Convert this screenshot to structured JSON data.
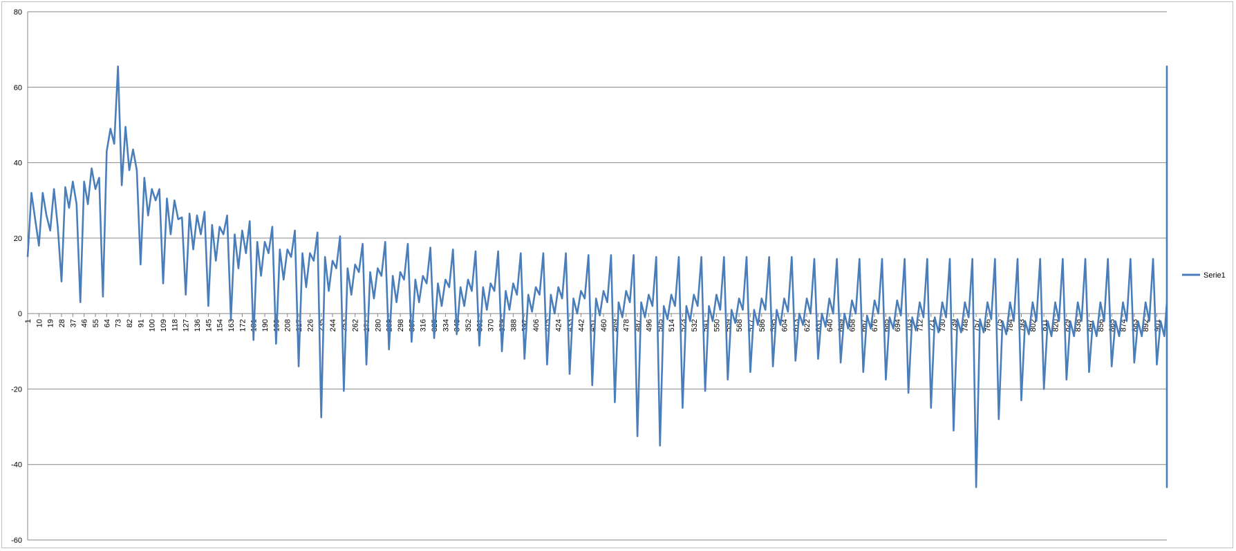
{
  "chart_data": {
    "type": "line",
    "title": "",
    "xlabel": "",
    "ylabel": "",
    "x_range": [
      1,
      909
    ],
    "x_tick_step": 9,
    "ylim": [
      -60,
      80
    ],
    "y_ticks": [
      -60,
      -40,
      -20,
      0,
      20,
      40,
      60,
      80
    ],
    "grid": "horizontal",
    "legend": "right",
    "line_color": "#4a7ebb",
    "series": [
      {
        "name": "Serie1",
        "samples_every": 3,
        "values": [
          15,
          32,
          25,
          18,
          32,
          26,
          22,
          33,
          23,
          8.5,
          33.5,
          28,
          35,
          29,
          3,
          35,
          29,
          38.5,
          33,
          36,
          4.5,
          43,
          49,
          45,
          65.5,
          34,
          49.5,
          38,
          43.5,
          38,
          13,
          36,
          26,
          33,
          30,
          33,
          8,
          30.5,
          21,
          30,
          25,
          25.5,
          5,
          26.5,
          17,
          26,
          21,
          27,
          2,
          23.5,
          14,
          23,
          21,
          26,
          -1.5,
          21,
          12,
          22,
          16,
          24.5,
          -7,
          19,
          10,
          19,
          16,
          23,
          -8,
          17,
          9,
          17,
          15,
          22,
          -14,
          16,
          7,
          16,
          14,
          21.5,
          -27.5,
          15,
          6,
          14,
          12,
          20.5,
          -20.5,
          12,
          5,
          13,
          11,
          18.5,
          -13.5,
          11,
          4,
          12,
          10,
          19,
          -9.5,
          10,
          3,
          11,
          9,
          18.5,
          -7.5,
          9,
          3,
          10,
          8,
          17.5,
          -6.5,
          8,
          2,
          9,
          7,
          17,
          -5.5,
          7,
          2,
          9,
          6,
          16.5,
          -8.5,
          7,
          1,
          8,
          6,
          16.5,
          -10,
          6,
          1,
          8,
          5,
          16,
          -12,
          5,
          0.5,
          7,
          5,
          16,
          -13.5,
          5,
          0,
          7,
          4,
          16,
          -16,
          4,
          0,
          6,
          4,
          15.5,
          -19,
          4,
          -0.5,
          6,
          3,
          15.5,
          -23.5,
          3,
          -1,
          6,
          3,
          15.5,
          -32.5,
          3,
          -1,
          5,
          2,
          15,
          -35,
          2,
          -1.5,
          5,
          2,
          15,
          -25,
          2,
          -2,
          5,
          2,
          15,
          -20.5,
          2,
          -2,
          5,
          1,
          15,
          -17.5,
          1,
          -2.5,
          4,
          1,
          15,
          -15.5,
          1,
          -3,
          4,
          1,
          15,
          -14,
          1,
          -3,
          4,
          0.5,
          15,
          -12.5,
          0,
          -3,
          4,
          0,
          14.5,
          -12,
          0,
          -3.5,
          4,
          0,
          14.5,
          -13,
          0,
          -4,
          3.5,
          0,
          14.5,
          -15.5,
          -0.5,
          -4,
          3.5,
          0,
          14.5,
          -17.5,
          -1,
          -4,
          3.5,
          -0.5,
          14.5,
          -21,
          -1,
          -4.5,
          3,
          -1,
          14.5,
          -25,
          -1,
          -5,
          3,
          -1,
          14.5,
          -31,
          -1.5,
          -5,
          3,
          -1,
          14.5,
          -46,
          -1.5,
          -5,
          3,
          -1.5,
          14.5,
          -28,
          -2,
          -5.5,
          3,
          -2,
          14.5,
          -23,
          -2,
          -5.5,
          3,
          -2,
          14.5,
          -20,
          -2,
          -6,
          3,
          -2,
          14.5,
          -17.5,
          -2,
          -6,
          3,
          -2,
          14.5,
          -15.5,
          -2,
          -6,
          3,
          -2,
          14.5,
          -14,
          -2,
          -6,
          3,
          -2,
          14.5,
          -13,
          -2,
          -6,
          3,
          -2,
          14.5,
          -13.5,
          -2,
          -6,
          3,
          -2,
          14.5,
          -15,
          -2,
          -6,
          3,
          -2,
          14.5,
          -17,
          -2,
          -6,
          3,
          -2,
          14.5,
          -19.5,
          -2,
          -5.5,
          3,
          -2,
          14.5,
          -23,
          -2,
          -5.5,
          3,
          -2,
          14.5,
          -28,
          -1.5,
          -5,
          3,
          -1.5,
          14.5,
          -46,
          -1.5,
          -5,
          3,
          -1,
          14.5,
          -31,
          -1,
          -5,
          3,
          -1,
          14.5,
          -25,
          -1,
          -4.5,
          3,
          -1,
          14.5,
          -21,
          -1,
          -4,
          3.5,
          -0.5,
          14.5,
          -17.5,
          0,
          -4,
          3.5,
          0,
          14.5,
          -15.5,
          0,
          -4,
          3.5,
          0,
          14.5,
          -13,
          0,
          -3.5,
          4,
          0,
          14.5,
          -12,
          0,
          -3,
          4,
          0,
          15,
          -12.5,
          0.5,
          -3,
          4,
          1,
          15,
          -14,
          1,
          -3,
          4,
          1,
          15,
          -15.5,
          1,
          -2.5,
          4,
          1,
          15,
          -17.5,
          1,
          -2,
          5,
          2,
          15,
          -20.5,
          2,
          -2,
          5,
          2,
          15,
          -25,
          2,
          -1.5,
          5,
          2,
          15,
          -35,
          2,
          -1,
          5,
          3,
          15.5,
          -32.5,
          3,
          -1,
          6,
          3,
          15.5,
          -23.5,
          3,
          -0.5,
          6,
          4,
          15.5,
          -19,
          4,
          0,
          6,
          4,
          16,
          -16,
          4,
          0,
          7,
          5,
          16,
          -13.5,
          5,
          0.5,
          7,
          5,
          16,
          -12,
          5,
          1,
          8,
          6,
          16.5,
          -10,
          6,
          1,
          8,
          7,
          16.5,
          -8.5,
          6,
          2,
          9,
          7,
          17,
          -5.5,
          7,
          2,
          9,
          8,
          17.5,
          -6.5,
          8,
          3,
          10,
          9,
          18.5,
          -7.5,
          9,
          3,
          11,
          10,
          19,
          -9.5,
          10,
          4,
          12,
          11,
          18.5,
          -13.5,
          11,
          5,
          13,
          12,
          20.5,
          -20.5,
          12,
          6,
          14,
          15,
          21.5,
          -27.5,
          14,
          7,
          16,
          16,
          22,
          -14,
          15,
          9,
          17,
          17,
          23,
          -8,
          16,
          10,
          19,
          19,
          24.5,
          -7,
          16,
          12,
          22,
          21,
          26,
          -1.5,
          21,
          14,
          23,
          23.5,
          27,
          2,
          21,
          17,
          26,
          26.5,
          25.5,
          5,
          25,
          21,
          30,
          30.5,
          30,
          8,
          33,
          26,
          33,
          36,
          33,
          13,
          38,
          43.5,
          38,
          49.5,
          34,
          65.5,
          45,
          49,
          43,
          4.5,
          36,
          33,
          38.5,
          29,
          35,
          3,
          29,
          35,
          28,
          33.5,
          8.5,
          23,
          33,
          22,
          26,
          32,
          25,
          32,
          15
        ]
      }
    ]
  }
}
